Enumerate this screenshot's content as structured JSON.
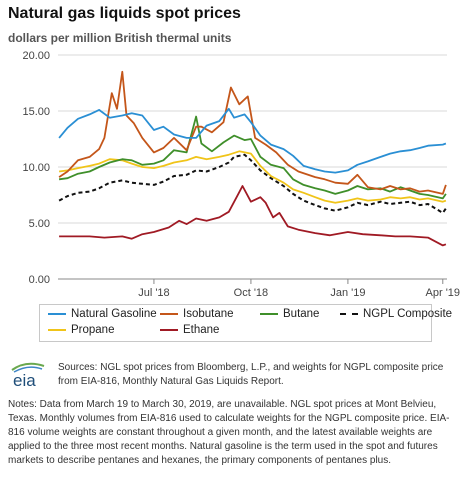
{
  "header": {
    "title": "Natural gas liquids spot prices",
    "subtitle": "dollars per million British thermal units"
  },
  "chart_data": {
    "type": "line",
    "title": "Natural gas liquids spot prices",
    "ylabel": "dollars per million British thermal units",
    "xlabel": "",
    "ylim": [
      0,
      20
    ],
    "y_ticks": [
      "0.00",
      "5.00",
      "10.00",
      "15.00",
      "20.00"
    ],
    "x_ticks": [
      {
        "label": "Jul '18",
        "date": "2018-07-01"
      },
      {
        "label": "Oct '18",
        "date": "2018-10-01"
      },
      {
        "label": "Jan '19",
        "date": "2019-01-01"
      },
      {
        "label": "Apr '19",
        "date": "2019-04-01"
      }
    ],
    "x_range": [
      "2018-04-01",
      "2019-04-05"
    ],
    "grid": "horizontal",
    "legend_position": "bottom",
    "series": [
      {
        "name": "Natural Gasoline",
        "color": "#2a8fd4",
        "dash": "solid",
        "points": [
          [
            "2018-04-02",
            12.6
          ],
          [
            "2018-04-10",
            13.5
          ],
          [
            "2018-04-20",
            14.3
          ],
          [
            "2018-05-01",
            14.7
          ],
          [
            "2018-05-10",
            15.1
          ],
          [
            "2018-05-20",
            14.4
          ],
          [
            "2018-06-01",
            14.6
          ],
          [
            "2018-06-10",
            14.8
          ],
          [
            "2018-06-20",
            14.6
          ],
          [
            "2018-07-01",
            13.3
          ],
          [
            "2018-07-10",
            13.6
          ],
          [
            "2018-07-20",
            12.9
          ],
          [
            "2018-08-01",
            12.6
          ],
          [
            "2018-08-10",
            12.6
          ],
          [
            "2018-08-20",
            13.7
          ],
          [
            "2018-09-01",
            14.1
          ],
          [
            "2018-09-10",
            15.2
          ],
          [
            "2018-09-15",
            14.4
          ],
          [
            "2018-09-25",
            14.7
          ],
          [
            "2018-10-01",
            14.0
          ],
          [
            "2018-10-10",
            12.8
          ],
          [
            "2018-10-20",
            12.0
          ],
          [
            "2018-11-01",
            11.6
          ],
          [
            "2018-11-10",
            11.0
          ],
          [
            "2018-11-20",
            10.1
          ],
          [
            "2018-12-01",
            9.8
          ],
          [
            "2018-12-10",
            9.6
          ],
          [
            "2018-12-20",
            9.5
          ],
          [
            "2019-01-01",
            9.7
          ],
          [
            "2019-01-10",
            10.2
          ],
          [
            "2019-01-20",
            10.5
          ],
          [
            "2019-02-01",
            10.9
          ],
          [
            "2019-02-10",
            11.2
          ],
          [
            "2019-02-20",
            11.4
          ],
          [
            "2019-03-01",
            11.5
          ],
          [
            "2019-03-10",
            11.7
          ],
          [
            "2019-03-18",
            11.9
          ],
          [
            "2019-04-01",
            12.0
          ],
          [
            "2019-04-04",
            12.1
          ]
        ]
      },
      {
        "name": "Isobutane",
        "color": "#c4561a",
        "dash": "solid",
        "points": [
          [
            "2018-04-02",
            9.1
          ],
          [
            "2018-04-10",
            9.6
          ],
          [
            "2018-04-20",
            10.6
          ],
          [
            "2018-05-01",
            10.9
          ],
          [
            "2018-05-10",
            11.6
          ],
          [
            "2018-05-15",
            12.6
          ],
          [
            "2018-05-22",
            16.6
          ],
          [
            "2018-05-27",
            15.2
          ],
          [
            "2018-06-01",
            18.5
          ],
          [
            "2018-06-05",
            14.6
          ],
          [
            "2018-06-12",
            13.9
          ],
          [
            "2018-06-20",
            12.6
          ],
          [
            "2018-07-01",
            11.3
          ],
          [
            "2018-07-10",
            11.7
          ],
          [
            "2018-07-20",
            12.6
          ],
          [
            "2018-08-01",
            11.5
          ],
          [
            "2018-08-10",
            13.6
          ],
          [
            "2018-08-15",
            13.6
          ],
          [
            "2018-08-25",
            13.1
          ],
          [
            "2018-09-05",
            14.0
          ],
          [
            "2018-09-12",
            17.1
          ],
          [
            "2018-09-20",
            15.6
          ],
          [
            "2018-09-28",
            16.3
          ],
          [
            "2018-10-05",
            12.6
          ],
          [
            "2018-10-15",
            12.0
          ],
          [
            "2018-10-25",
            11.3
          ],
          [
            "2018-11-05",
            10.2
          ],
          [
            "2018-11-15",
            9.6
          ],
          [
            "2018-12-01",
            9.1
          ],
          [
            "2018-12-10",
            8.9
          ],
          [
            "2018-12-20",
            8.6
          ],
          [
            "2019-01-01",
            8.5
          ],
          [
            "2019-01-10",
            9.3
          ],
          [
            "2019-01-20",
            8.2
          ],
          [
            "2019-02-01",
            8.0
          ],
          [
            "2019-02-10",
            8.3
          ],
          [
            "2019-02-20",
            8.0
          ],
          [
            "2019-03-01",
            8.1
          ],
          [
            "2019-03-10",
            7.8
          ],
          [
            "2019-03-18",
            7.9
          ],
          [
            "2019-04-01",
            7.6
          ],
          [
            "2019-04-04",
            8.4
          ]
        ]
      },
      {
        "name": "Butane",
        "color": "#3f8f2a",
        "dash": "solid",
        "points": [
          [
            "2018-04-02",
            8.9
          ],
          [
            "2018-04-10",
            9.0
          ],
          [
            "2018-04-20",
            9.4
          ],
          [
            "2018-05-01",
            9.6
          ],
          [
            "2018-05-10",
            10.0
          ],
          [
            "2018-05-20",
            10.4
          ],
          [
            "2018-06-01",
            10.7
          ],
          [
            "2018-06-10",
            10.6
          ],
          [
            "2018-06-20",
            10.2
          ],
          [
            "2018-07-01",
            10.3
          ],
          [
            "2018-07-10",
            10.6
          ],
          [
            "2018-07-20",
            11.5
          ],
          [
            "2018-08-01",
            11.3
          ],
          [
            "2018-08-10",
            14.5
          ],
          [
            "2018-08-15",
            12.1
          ],
          [
            "2018-08-25",
            11.4
          ],
          [
            "2018-09-05",
            12.2
          ],
          [
            "2018-09-15",
            12.8
          ],
          [
            "2018-09-25",
            12.4
          ],
          [
            "2018-10-01",
            12.5
          ],
          [
            "2018-10-10",
            10.9
          ],
          [
            "2018-10-20",
            10.2
          ],
          [
            "2018-11-01",
            9.9
          ],
          [
            "2018-11-10",
            8.9
          ],
          [
            "2018-11-20",
            8.4
          ],
          [
            "2018-12-01",
            8.1
          ],
          [
            "2018-12-10",
            7.9
          ],
          [
            "2018-12-20",
            7.6
          ],
          [
            "2019-01-01",
            7.9
          ],
          [
            "2019-01-10",
            8.3
          ],
          [
            "2019-01-20",
            8.0
          ],
          [
            "2019-02-01",
            8.1
          ],
          [
            "2019-02-10",
            7.8
          ],
          [
            "2019-02-20",
            8.2
          ],
          [
            "2019-03-01",
            7.9
          ],
          [
            "2019-03-10",
            7.6
          ],
          [
            "2019-03-18",
            7.5
          ],
          [
            "2019-04-01",
            7.2
          ],
          [
            "2019-04-04",
            7.6
          ]
        ]
      },
      {
        "name": "NGPL Composite",
        "color": "#111111",
        "dash": "dashed",
        "points": [
          [
            "2018-04-02",
            7.0
          ],
          [
            "2018-04-10",
            7.4
          ],
          [
            "2018-04-20",
            7.7
          ],
          [
            "2018-05-01",
            7.8
          ],
          [
            "2018-05-10",
            8.1
          ],
          [
            "2018-05-20",
            8.6
          ],
          [
            "2018-06-01",
            8.8
          ],
          [
            "2018-06-10",
            8.6
          ],
          [
            "2018-06-20",
            8.5
          ],
          [
            "2018-07-01",
            8.4
          ],
          [
            "2018-07-10",
            8.7
          ],
          [
            "2018-07-20",
            9.2
          ],
          [
            "2018-08-01",
            9.3
          ],
          [
            "2018-08-10",
            9.7
          ],
          [
            "2018-08-20",
            9.6
          ],
          [
            "2018-09-01",
            10.0
          ],
          [
            "2018-09-10",
            10.4
          ],
          [
            "2018-09-15",
            10.9
          ],
          [
            "2018-09-25",
            11.1
          ],
          [
            "2018-10-01",
            10.6
          ],
          [
            "2018-10-10",
            9.7
          ],
          [
            "2018-10-20",
            9.0
          ],
          [
            "2018-11-01",
            8.3
          ],
          [
            "2018-11-10",
            7.6
          ],
          [
            "2018-11-20",
            7.0
          ],
          [
            "2018-12-01",
            6.6
          ],
          [
            "2018-12-10",
            6.3
          ],
          [
            "2018-12-20",
            6.1
          ],
          [
            "2019-01-01",
            6.4
          ],
          [
            "2019-01-10",
            6.8
          ],
          [
            "2019-01-20",
            6.6
          ],
          [
            "2019-02-01",
            6.9
          ],
          [
            "2019-02-10",
            6.7
          ],
          [
            "2019-02-20",
            6.8
          ],
          [
            "2019-03-01",
            6.9
          ],
          [
            "2019-03-10",
            6.6
          ],
          [
            "2019-03-18",
            6.7
          ],
          [
            "2019-04-01",
            5.9
          ],
          [
            "2019-04-04",
            6.3
          ]
        ]
      },
      {
        "name": "Propane",
        "color": "#f0c419",
        "dash": "solid",
        "points": [
          [
            "2018-04-02",
            9.6
          ],
          [
            "2018-04-10",
            9.7
          ],
          [
            "2018-04-20",
            9.9
          ],
          [
            "2018-05-01",
            10.1
          ],
          [
            "2018-05-10",
            10.3
          ],
          [
            "2018-05-20",
            10.7
          ],
          [
            "2018-06-01",
            10.6
          ],
          [
            "2018-06-10",
            10.3
          ],
          [
            "2018-06-20",
            10.0
          ],
          [
            "2018-07-01",
            9.9
          ],
          [
            "2018-07-10",
            10.1
          ],
          [
            "2018-07-20",
            10.4
          ],
          [
            "2018-08-01",
            10.6
          ],
          [
            "2018-08-10",
            10.9
          ],
          [
            "2018-08-20",
            10.7
          ],
          [
            "2018-09-01",
            10.9
          ],
          [
            "2018-09-10",
            11.1
          ],
          [
            "2018-09-20",
            11.4
          ],
          [
            "2018-10-01",
            11.2
          ],
          [
            "2018-10-10",
            10.1
          ],
          [
            "2018-10-20",
            9.2
          ],
          [
            "2018-11-01",
            8.6
          ],
          [
            "2018-11-10",
            8.0
          ],
          [
            "2018-11-20",
            7.7
          ],
          [
            "2018-12-01",
            7.3
          ],
          [
            "2018-12-10",
            7.0
          ],
          [
            "2018-12-20",
            6.8
          ],
          [
            "2019-01-01",
            7.0
          ],
          [
            "2019-01-10",
            7.2
          ],
          [
            "2019-01-20",
            7.0
          ],
          [
            "2019-02-01",
            7.1
          ],
          [
            "2019-02-10",
            7.3
          ],
          [
            "2019-02-20",
            7.2
          ],
          [
            "2019-03-01",
            7.3
          ],
          [
            "2019-03-10",
            7.1
          ],
          [
            "2019-03-18",
            7.2
          ],
          [
            "2019-04-01",
            6.9
          ],
          [
            "2019-04-04",
            7.0
          ]
        ]
      },
      {
        "name": "Ethane",
        "color": "#a01a24",
        "dash": "solid",
        "points": [
          [
            "2018-04-02",
            3.8
          ],
          [
            "2018-04-15",
            3.8
          ],
          [
            "2018-05-01",
            3.8
          ],
          [
            "2018-05-15",
            3.7
          ],
          [
            "2018-06-01",
            3.8
          ],
          [
            "2018-06-10",
            3.6
          ],
          [
            "2018-06-20",
            4.0
          ],
          [
            "2018-07-01",
            4.2
          ],
          [
            "2018-07-15",
            4.6
          ],
          [
            "2018-07-25",
            5.2
          ],
          [
            "2018-08-01",
            4.9
          ],
          [
            "2018-08-10",
            5.4
          ],
          [
            "2018-08-20",
            5.2
          ],
          [
            "2018-09-01",
            5.5
          ],
          [
            "2018-09-10",
            6.0
          ],
          [
            "2018-09-18",
            7.4
          ],
          [
            "2018-09-23",
            8.3
          ],
          [
            "2018-10-01",
            6.9
          ],
          [
            "2018-10-10",
            7.3
          ],
          [
            "2018-10-15",
            6.8
          ],
          [
            "2018-10-22",
            5.5
          ],
          [
            "2018-10-28",
            5.9
          ],
          [
            "2018-11-05",
            4.7
          ],
          [
            "2018-11-15",
            4.4
          ],
          [
            "2018-12-01",
            4.1
          ],
          [
            "2018-12-15",
            3.9
          ],
          [
            "2019-01-01",
            4.2
          ],
          [
            "2019-01-15",
            4.0
          ],
          [
            "2019-02-01",
            3.9
          ],
          [
            "2019-02-15",
            3.8
          ],
          [
            "2019-03-01",
            3.8
          ],
          [
            "2019-03-18",
            3.7
          ],
          [
            "2019-04-01",
            3.0
          ],
          [
            "2019-04-04",
            3.1
          ]
        ]
      }
    ]
  },
  "sources": "Sources: NGL spot prices from Bloomberg, L.P., and weights for NGPL composite price from EIA-816, Monthly Natural Gas Liquids Report.",
  "notes": "Notes: Data from March 19 to March 30, 2019, are unavailable. NGL spot prices at Mont Belvieu, Texas. Monthly volumes from EIA-816 used to calculate weights for the NGPL composite price. EIA-816 volume weights are constant throughout a given month, and the latest available weights are applied to the three most recent months. Natural gasoline is the term used in the spot and futures markets to describe pentanes and hexanes, the primary components of pentanes plus.",
  "logo": {
    "text": "eia",
    "icon": "eia-logo"
  }
}
